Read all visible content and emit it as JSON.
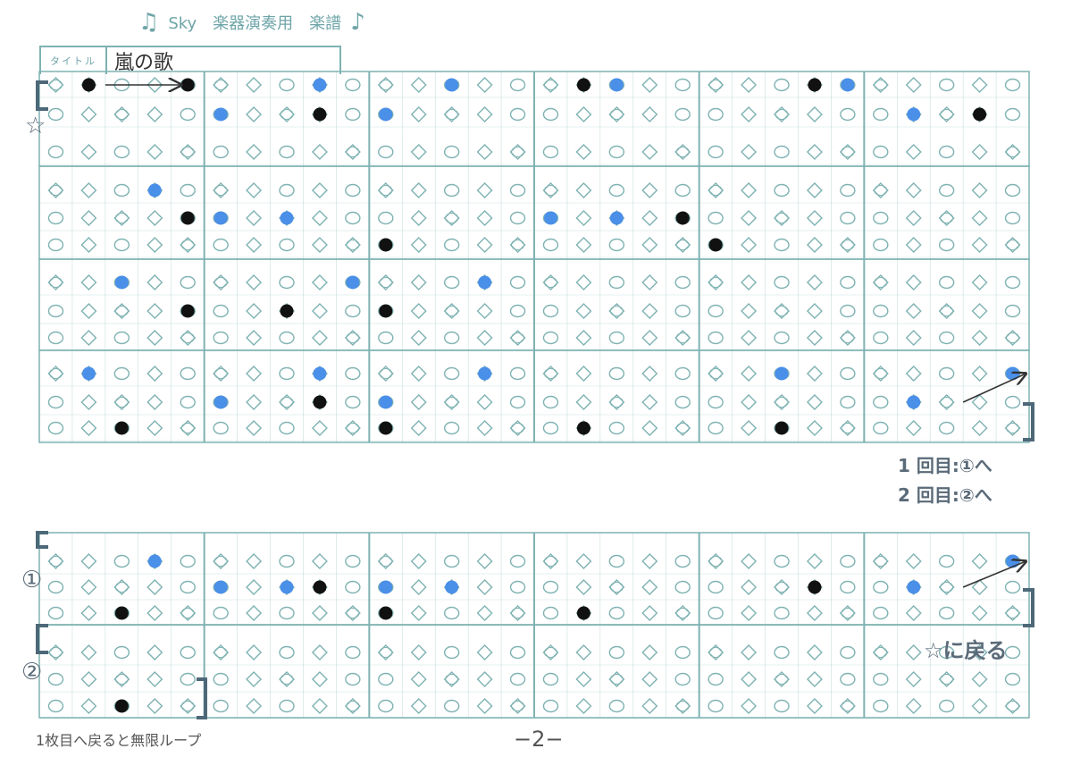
{
  "header": {
    "title": "Sky　楽器演奏用　楽譜",
    "note_left": "♫",
    "note_right": "♪"
  },
  "title_box": {
    "label": "タイトル",
    "value": "嵐の歌"
  },
  "marks": {
    "star": "☆",
    "first": "①",
    "second": "②"
  },
  "repeat": {
    "line1": "1 回目:①へ",
    "line2": "2 回目:②へ"
  },
  "back_to_star": "☆に戻る",
  "loop_note": "1枚目へ戻ると無限ループ",
  "page_number": "−2−",
  "colors": {
    "grid": "#7fb2b2",
    "blue": "#4a8fe8",
    "black": "#111111",
    "hole": "#7fb2b2"
  },
  "rows": [
    {
      "notes": [
        [
          0,
          1,
          "k"
        ],
        [
          0,
          4,
          "k"
        ],
        [
          0,
          8,
          "b"
        ],
        [
          0,
          12,
          "b"
        ],
        [
          0,
          16,
          "k"
        ],
        [
          0,
          17,
          "b"
        ],
        [
          0,
          23,
          "k"
        ],
        [
          0,
          24,
          "b"
        ],
        [
          1,
          5,
          "b"
        ],
        [
          1,
          8,
          "k"
        ],
        [
          1,
          10,
          "b"
        ],
        [
          1,
          26,
          "b"
        ],
        [
          1,
          28,
          "k"
        ]
      ],
      "arrows": [
        [
          0,
          1.5,
          0,
          3.8
        ]
      ]
    },
    {
      "notes": [
        [
          0,
          3,
          "b"
        ],
        [
          1,
          4,
          "k"
        ],
        [
          1,
          5,
          "b"
        ],
        [
          1,
          7,
          "b"
        ],
        [
          2,
          10,
          "k"
        ],
        [
          1,
          15,
          "b"
        ],
        [
          1,
          17,
          "b"
        ],
        [
          1,
          19,
          "k"
        ],
        [
          2,
          20,
          "k"
        ]
      ],
      "arrows": []
    },
    {
      "notes": [
        [
          0,
          2,
          "b"
        ],
        [
          1,
          4,
          "k"
        ],
        [
          1,
          7,
          "k"
        ],
        [
          0,
          9,
          "b"
        ],
        [
          1,
          10,
          "k"
        ],
        [
          0,
          13,
          "b"
        ]
      ],
      "arrows": []
    },
    {
      "notes": [
        [
          0,
          1,
          "b"
        ],
        [
          2,
          2,
          "k"
        ],
        [
          1,
          5,
          "b"
        ],
        [
          0,
          8,
          "b"
        ],
        [
          1,
          8,
          "k"
        ],
        [
          1,
          10,
          "b"
        ],
        [
          2,
          10,
          "k"
        ],
        [
          0,
          13,
          "b"
        ],
        [
          2,
          16,
          "k"
        ],
        [
          0,
          22,
          "b"
        ],
        [
          2,
          22,
          "k"
        ],
        [
          1,
          26,
          "b"
        ],
        [
          0,
          29,
          "b"
        ]
      ],
      "arrows": [
        [
          1,
          27.5,
          0,
          29.4
        ]
      ]
    },
    {
      "notes": [
        [
          0,
          3,
          "b"
        ],
        [
          2,
          2,
          "k"
        ],
        [
          1,
          5,
          "b"
        ],
        [
          1,
          7,
          "b"
        ],
        [
          1,
          8,
          "k"
        ],
        [
          1,
          10,
          "b"
        ],
        [
          1,
          12,
          "b"
        ],
        [
          2,
          10,
          "k"
        ],
        [
          2,
          16,
          "k"
        ],
        [
          1,
          23,
          "k"
        ],
        [
          1,
          26,
          "b"
        ],
        [
          0,
          29,
          "b"
        ]
      ],
      "arrows": [
        [
          1,
          27.5,
          0,
          29.4
        ]
      ]
    },
    {
      "notes": [
        [
          2,
          2,
          "k"
        ]
      ],
      "arrows": []
    }
  ]
}
